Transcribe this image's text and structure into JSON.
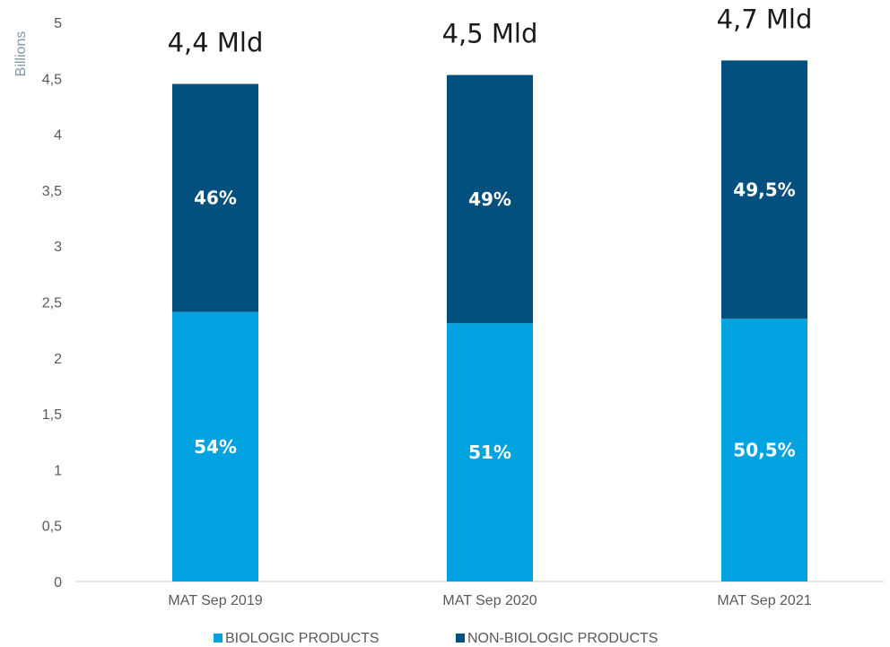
{
  "chart_data": {
    "type": "bar",
    "stacked": true,
    "categories": [
      "MAT Sep 2019",
      "MAT Sep 2020",
      "MAT Sep 2021"
    ],
    "series": [
      {
        "name": "BIOLOGIC PRODUCTS",
        "color": "#00a2e0",
        "values": [
          2.41,
          2.31,
          2.35
        ],
        "labels": [
          "54%",
          "51%",
          "50,5%"
        ]
      },
      {
        "name": "NON-BIOLOGIC PRODUCTS",
        "color": "#03507f",
        "values": [
          2.04,
          2.22,
          2.31
        ],
        "labels": [
          "46%",
          "49%",
          "49,5%"
        ]
      }
    ],
    "totals": [
      "4,4 Mld",
      "4,5 Mld",
      "4,7 Mld"
    ],
    "ylabel": "Billions",
    "ylim": [
      0,
      5
    ],
    "yticks": [
      0,
      0.5,
      1,
      1.5,
      2,
      2.5,
      3,
      3.5,
      4,
      4.5,
      5
    ],
    "ytick_labels": [
      "0",
      "0,5",
      "1",
      "1,5",
      "2",
      "2,5",
      "3",
      "3,5",
      "4",
      "4,5",
      "5"
    ],
    "grid": false,
    "legend_position": "bottom"
  }
}
